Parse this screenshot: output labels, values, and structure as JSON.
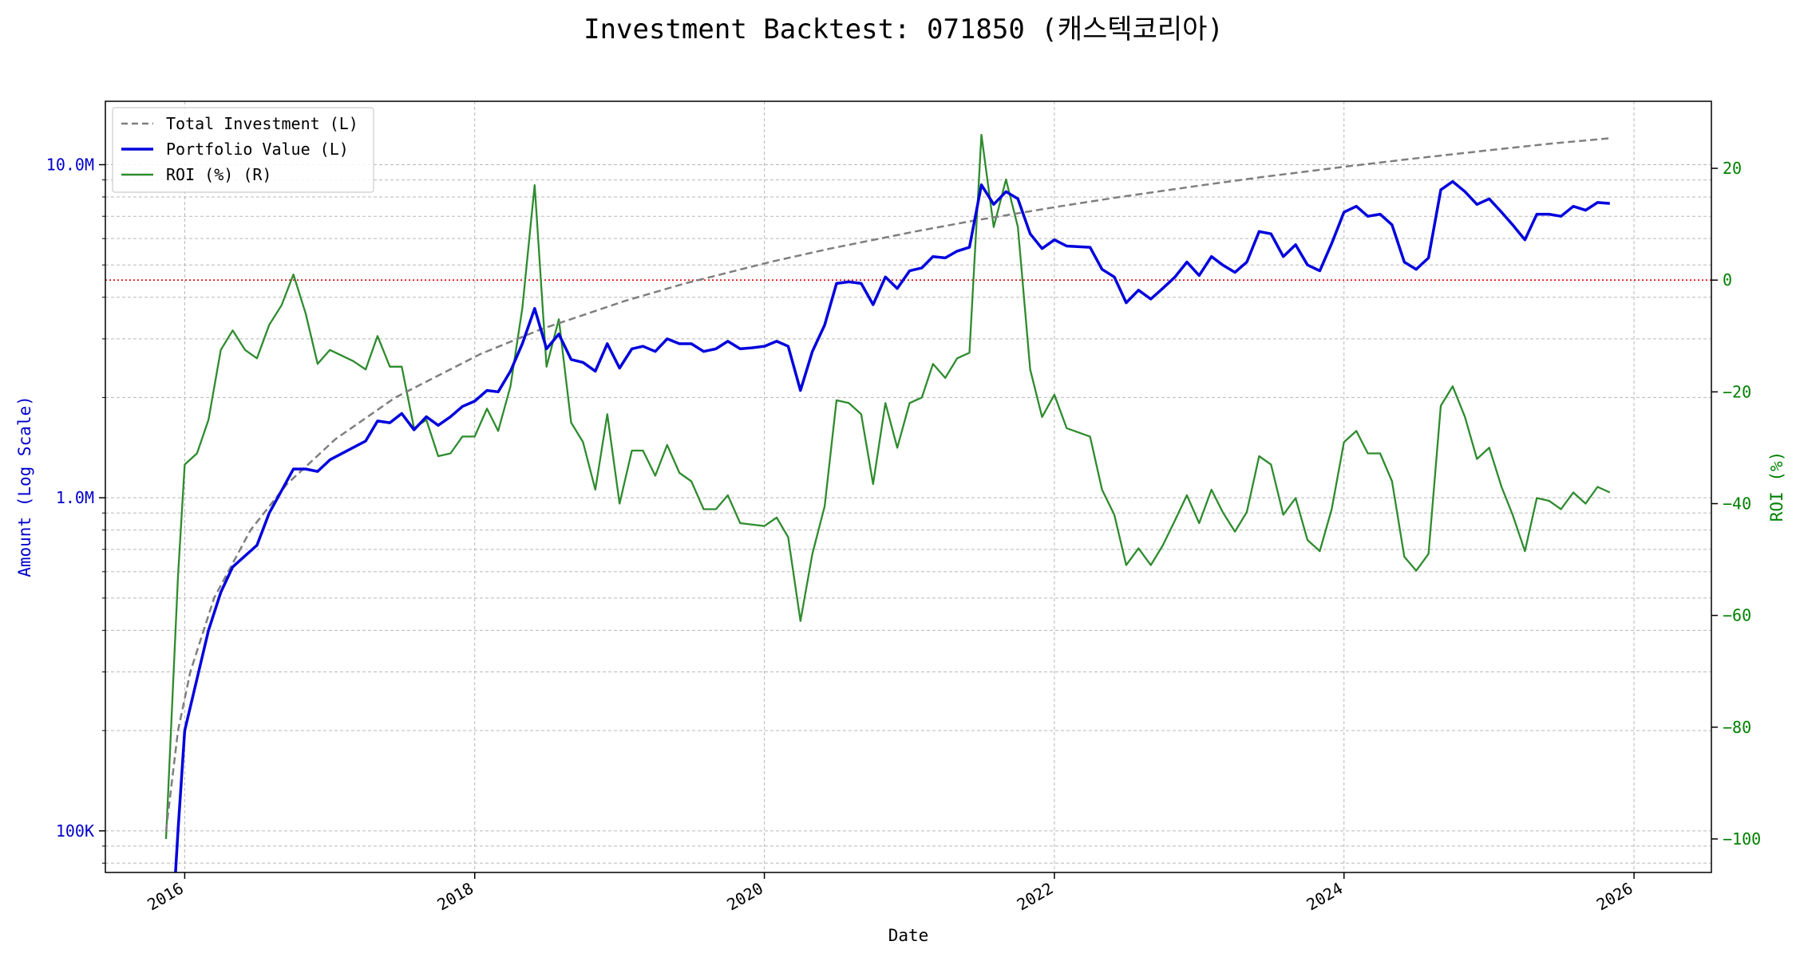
{
  "chart_data": {
    "type": "line",
    "title": "Investment Backtest: 071850 (캐스텍코리아)",
    "xlabel": "Date",
    "ylabel_left": "Amount (Log Scale)",
    "ylabel_right": "ROI (%)",
    "left_scale": "log",
    "left_ylim": [
      75000,
      15500000
    ],
    "right_ylim": [
      -106,
      32
    ],
    "xlim": [
      "2015-06-15",
      "2026-07-15"
    ],
    "x_ticks": [
      "2016",
      "2018",
      "2020",
      "2022",
      "2024",
      "2026"
    ],
    "left_ticks": [
      {
        "value": 100000,
        "label": "100K"
      },
      {
        "value": 1000000,
        "label": "1.0M"
      },
      {
        "value": 10000000,
        "label": "10.0M"
      }
    ],
    "right_ticks": [
      {
        "value": 20,
        "label": "20"
      },
      {
        "value": 0,
        "label": "0"
      },
      {
        "value": -20,
        "label": "−20"
      },
      {
        "value": -40,
        "label": "−40"
      },
      {
        "value": -60,
        "label": "−60"
      },
      {
        "value": -80,
        "label": "−80"
      },
      {
        "value": -100,
        "label": "−100"
      }
    ],
    "grid": true,
    "legend_position": "top-left",
    "reference_line": {
      "axis": "right",
      "value": 0,
      "color": "#dd0000",
      "style": "dotted"
    },
    "colors": {
      "total_investment": "#7f7f7f",
      "portfolio": "#0000dd",
      "roi": "#2e8b2e",
      "left_axis": "#0000cc",
      "right_axis": "#008000"
    },
    "series": [
      {
        "name": "Total Investment (L)",
        "axis": "left",
        "style": "dashed",
        "points": [
          [
            "2015-11-15",
            100000
          ],
          [
            "2015-12-15",
            200000
          ],
          [
            "2016-01-15",
            300000
          ],
          [
            "2016-03-15",
            500000
          ],
          [
            "2016-06-15",
            800000
          ],
          [
            "2016-09-15",
            1100000
          ],
          [
            "2017-01-15",
            1500000
          ],
          [
            "2017-06-15",
            2000000
          ],
          [
            "2018-01-15",
            2700000
          ],
          [
            "2018-06-15",
            3200000
          ],
          [
            "2019-01-15",
            3900000
          ],
          [
            "2019-06-15",
            4400000
          ],
          [
            "2020-01-15",
            5100000
          ],
          [
            "2020-06-15",
            5600000
          ],
          [
            "2021-01-15",
            6300000
          ],
          [
            "2021-06-15",
            6800000
          ],
          [
            "2022-01-15",
            7500000
          ],
          [
            "2022-06-15",
            8000000
          ],
          [
            "2023-01-15",
            8700000
          ],
          [
            "2023-06-15",
            9200000
          ],
          [
            "2024-01-15",
            9900000
          ],
          [
            "2024-06-15",
            10400000
          ],
          [
            "2025-01-15",
            11100000
          ],
          [
            "2025-06-15",
            11600000
          ],
          [
            "2025-11-01",
            12000000
          ]
        ]
      },
      {
        "name": "Portfolio Value (L)",
        "axis": "left",
        "style": "solid",
        "points": [
          [
            "2015-11-30",
            50000
          ],
          [
            "2015-12-15",
            100000
          ],
          [
            "2016-01-01",
            200000
          ],
          [
            "2016-03-01",
            400000
          ],
          [
            "2016-04-01",
            520000
          ],
          [
            "2016-05-01",
            620000
          ],
          [
            "2016-07-01",
            720000
          ],
          [
            "2016-08-01",
            900000
          ],
          [
            "2016-09-01",
            1050000
          ],
          [
            "2016-10-01",
            1220000
          ],
          [
            "2016-11-01",
            1220000
          ],
          [
            "2016-12-01",
            1200000
          ],
          [
            "2017-01-01",
            1300000
          ],
          [
            "2017-02-01",
            1360000
          ],
          [
            "2017-04-01",
            1480000
          ],
          [
            "2017-05-01",
            1700000
          ],
          [
            "2017-06-01",
            1680000
          ],
          [
            "2017-07-01",
            1790000
          ],
          [
            "2017-08-01",
            1600000
          ],
          [
            "2017-09-01",
            1750000
          ],
          [
            "2017-10-01",
            1650000
          ],
          [
            "2017-11-01",
            1750000
          ],
          [
            "2017-12-01",
            1880000
          ],
          [
            "2018-01-01",
            1950000
          ],
          [
            "2018-02-01",
            2100000
          ],
          [
            "2018-03-01",
            2080000
          ],
          [
            "2018-04-01",
            2400000
          ],
          [
            "2018-05-01",
            2900000
          ],
          [
            "2018-06-01",
            3700000
          ],
          [
            "2018-07-01",
            2800000
          ],
          [
            "2018-08-01",
            3100000
          ],
          [
            "2018-09-01",
            2600000
          ],
          [
            "2018-10-01",
            2550000
          ],
          [
            "2018-11-01",
            2400000
          ],
          [
            "2018-12-01",
            2900000
          ],
          [
            "2019-01-01",
            2450000
          ],
          [
            "2019-02-01",
            2800000
          ],
          [
            "2019-03-01",
            2850000
          ],
          [
            "2019-04-01",
            2750000
          ],
          [
            "2019-05-01",
            3000000
          ],
          [
            "2019-06-01",
            2900000
          ],
          [
            "2019-07-01",
            2900000
          ],
          [
            "2019-08-01",
            2750000
          ],
          [
            "2019-09-01",
            2800000
          ],
          [
            "2019-10-01",
            2950000
          ],
          [
            "2019-11-01",
            2800000
          ],
          [
            "2019-12-01",
            2820000
          ],
          [
            "2020-01-01",
            2850000
          ],
          [
            "2020-02-01",
            2950000
          ],
          [
            "2020-03-01",
            2850000
          ],
          [
            "2020-04-01",
            2100000
          ],
          [
            "2020-05-01",
            2750000
          ],
          [
            "2020-06-01",
            3300000
          ],
          [
            "2020-07-01",
            4400000
          ],
          [
            "2020-08-01",
            4450000
          ],
          [
            "2020-09-01",
            4400000
          ],
          [
            "2020-10-01",
            3800000
          ],
          [
            "2020-11-01",
            4600000
          ],
          [
            "2020-12-01",
            4250000
          ],
          [
            "2021-01-01",
            4800000
          ],
          [
            "2021-02-01",
            4900000
          ],
          [
            "2021-03-01",
            5300000
          ],
          [
            "2021-04-01",
            5250000
          ],
          [
            "2021-05-01",
            5500000
          ],
          [
            "2021-06-01",
            5650000
          ],
          [
            "2021-07-01",
            8700000
          ],
          [
            "2021-08-01",
            7600000
          ],
          [
            "2021-09-01",
            8300000
          ],
          [
            "2021-10-01",
            7900000
          ],
          [
            "2021-11-01",
            6200000
          ],
          [
            "2021-12-01",
            5600000
          ],
          [
            "2022-01-01",
            5950000
          ],
          [
            "2022-02-01",
            5700000
          ],
          [
            "2022-04-01",
            5650000
          ],
          [
            "2022-05-01",
            4850000
          ],
          [
            "2022-06-01",
            4600000
          ],
          [
            "2022-07-01",
            3850000
          ],
          [
            "2022-08-01",
            4200000
          ],
          [
            "2022-09-01",
            3950000
          ],
          [
            "2022-10-01",
            4250000
          ],
          [
            "2022-11-01",
            4600000
          ],
          [
            "2022-12-01",
            5100000
          ],
          [
            "2023-01-01",
            4650000
          ],
          [
            "2023-02-01",
            5300000
          ],
          [
            "2023-03-01",
            5000000
          ],
          [
            "2023-04-01",
            4750000
          ],
          [
            "2023-05-01",
            5100000
          ],
          [
            "2023-06-01",
            6300000
          ],
          [
            "2023-07-01",
            6200000
          ],
          [
            "2023-08-01",
            5300000
          ],
          [
            "2023-09-01",
            5750000
          ],
          [
            "2023-10-01",
            5000000
          ],
          [
            "2023-11-01",
            4800000
          ],
          [
            "2023-12-01",
            5800000
          ],
          [
            "2024-01-01",
            7200000
          ],
          [
            "2024-02-01",
            7500000
          ],
          [
            "2024-03-01",
            7000000
          ],
          [
            "2024-04-01",
            7100000
          ],
          [
            "2024-05-01",
            6600000
          ],
          [
            "2024-06-01",
            5100000
          ],
          [
            "2024-07-01",
            4850000
          ],
          [
            "2024-08-01",
            5250000
          ],
          [
            "2024-09-01",
            8400000
          ],
          [
            "2024-10-01",
            8900000
          ],
          [
            "2024-11-01",
            8300000
          ],
          [
            "2024-12-01",
            7600000
          ],
          [
            "2025-01-01",
            7900000
          ],
          [
            "2025-02-01",
            7200000
          ],
          [
            "2025-03-01",
            6600000
          ],
          [
            "2025-04-01",
            5950000
          ],
          [
            "2025-05-01",
            7100000
          ],
          [
            "2025-06-01",
            7100000
          ],
          [
            "2025-07-01",
            7000000
          ],
          [
            "2025-08-01",
            7500000
          ],
          [
            "2025-09-01",
            7300000
          ],
          [
            "2025-10-01",
            7700000
          ],
          [
            "2025-11-01",
            7650000
          ]
        ]
      },
      {
        "name": "ROI (%) (R)",
        "axis": "right",
        "style": "solid",
        "points": [
          [
            "2015-11-15",
            -100
          ],
          [
            "2015-12-15",
            -53
          ],
          [
            "2016-01-01",
            -33
          ],
          [
            "2016-02-01",
            -31
          ],
          [
            "2016-03-01",
            -25
          ],
          [
            "2016-04-01",
            -12.5
          ],
          [
            "2016-05-01",
            -9
          ],
          [
            "2016-06-01",
            -12.5
          ],
          [
            "2016-07-01",
            -14
          ],
          [
            "2016-08-01",
            -8
          ],
          [
            "2016-09-01",
            -4.5
          ],
          [
            "2016-10-01",
            1
          ],
          [
            "2016-11-01",
            -6
          ],
          [
            "2016-12-01",
            -15
          ],
          [
            "2017-01-01",
            -12.5
          ],
          [
            "2017-03-01",
            -14.5
          ],
          [
            "2017-04-01",
            -16
          ],
          [
            "2017-05-01",
            -10
          ],
          [
            "2017-06-01",
            -15.5
          ],
          [
            "2017-07-01",
            -15.5
          ],
          [
            "2017-08-01",
            -26.5
          ],
          [
            "2017-09-01",
            -25
          ],
          [
            "2017-10-01",
            -31.5
          ],
          [
            "2017-11-01",
            -31
          ],
          [
            "2017-12-01",
            -28
          ],
          [
            "2018-01-01",
            -28
          ],
          [
            "2018-02-01",
            -23
          ],
          [
            "2018-03-01",
            -27
          ],
          [
            "2018-04-01",
            -19
          ],
          [
            "2018-05-01",
            -5
          ],
          [
            "2018-06-01",
            17
          ],
          [
            "2018-07-01",
            -15.5
          ],
          [
            "2018-08-01",
            -7
          ],
          [
            "2018-09-01",
            -25.5
          ],
          [
            "2018-10-01",
            -29
          ],
          [
            "2018-11-01",
            -37.5
          ],
          [
            "2018-12-01",
            -24
          ],
          [
            "2019-01-01",
            -40
          ],
          [
            "2019-02-01",
            -30.5
          ],
          [
            "2019-03-01",
            -30.5
          ],
          [
            "2019-04-01",
            -35
          ],
          [
            "2019-05-01",
            -29.5
          ],
          [
            "2019-06-01",
            -34.5
          ],
          [
            "2019-07-01",
            -36
          ],
          [
            "2019-08-01",
            -41
          ],
          [
            "2019-09-01",
            -41
          ],
          [
            "2019-10-01",
            -38.5
          ],
          [
            "2019-11-01",
            -43.5
          ],
          [
            "2020-01-01",
            -44
          ],
          [
            "2020-02-01",
            -42.5
          ],
          [
            "2020-03-01",
            -46
          ],
          [
            "2020-04-01",
            -61
          ],
          [
            "2020-05-01",
            -49
          ],
          [
            "2020-06-01",
            -40.5
          ],
          [
            "2020-07-01",
            -21.5
          ],
          [
            "2020-08-01",
            -22
          ],
          [
            "2020-09-01",
            -24
          ],
          [
            "2020-10-01",
            -36.5
          ],
          [
            "2020-11-01",
            -22
          ],
          [
            "2020-12-01",
            -30
          ],
          [
            "2021-01-01",
            -22
          ],
          [
            "2021-02-01",
            -21
          ],
          [
            "2021-03-01",
            -15
          ],
          [
            "2021-04-01",
            -17.5
          ],
          [
            "2021-05-01",
            -14
          ],
          [
            "2021-06-01",
            -13
          ],
          [
            "2021-07-01",
            26
          ],
          [
            "2021-08-01",
            9.5
          ],
          [
            "2021-09-01",
            18
          ],
          [
            "2021-10-01",
            9.5
          ],
          [
            "2021-11-01",
            -16
          ],
          [
            "2021-12-01",
            -24.5
          ],
          [
            "2022-01-01",
            -20.5
          ],
          [
            "2022-02-01",
            -26.5
          ],
          [
            "2022-04-01",
            -28
          ],
          [
            "2022-05-01",
            -37.5
          ],
          [
            "2022-06-01",
            -42
          ],
          [
            "2022-07-01",
            -51
          ],
          [
            "2022-08-01",
            -48
          ],
          [
            "2022-09-01",
            -51
          ],
          [
            "2022-10-01",
            -47.5
          ],
          [
            "2022-11-01",
            -43
          ],
          [
            "2022-12-01",
            -38.5
          ],
          [
            "2023-01-01",
            -43.5
          ],
          [
            "2023-02-01",
            -37.5
          ],
          [
            "2023-03-01",
            -41.5
          ],
          [
            "2023-04-01",
            -45
          ],
          [
            "2023-05-01",
            -41.5
          ],
          [
            "2023-06-01",
            -31.5
          ],
          [
            "2023-07-01",
            -33
          ],
          [
            "2023-08-01",
            -42
          ],
          [
            "2023-09-01",
            -39
          ],
          [
            "2023-10-01",
            -46.5
          ],
          [
            "2023-11-01",
            -48.5
          ],
          [
            "2023-12-01",
            -41
          ],
          [
            "2024-01-01",
            -29
          ],
          [
            "2024-02-01",
            -27
          ],
          [
            "2024-03-01",
            -31
          ],
          [
            "2024-04-01",
            -31
          ],
          [
            "2024-05-01",
            -36
          ],
          [
            "2024-06-01",
            -49.5
          ],
          [
            "2024-07-01",
            -52
          ],
          [
            "2024-08-01",
            -49
          ],
          [
            "2024-09-01",
            -22.5
          ],
          [
            "2024-10-01",
            -19
          ],
          [
            "2024-11-01",
            -24.5
          ],
          [
            "2024-12-01",
            -32
          ],
          [
            "2025-01-01",
            -30
          ],
          [
            "2025-02-01",
            -37
          ],
          [
            "2025-03-01",
            -42
          ],
          [
            "2025-04-01",
            -48.5
          ],
          [
            "2025-05-01",
            -39
          ],
          [
            "2025-06-01",
            -39.5
          ],
          [
            "2025-07-01",
            -41
          ],
          [
            "2025-08-01",
            -38
          ],
          [
            "2025-09-01",
            -40
          ],
          [
            "2025-10-01",
            -37
          ],
          [
            "2025-11-01",
            -38
          ]
        ]
      }
    ]
  }
}
